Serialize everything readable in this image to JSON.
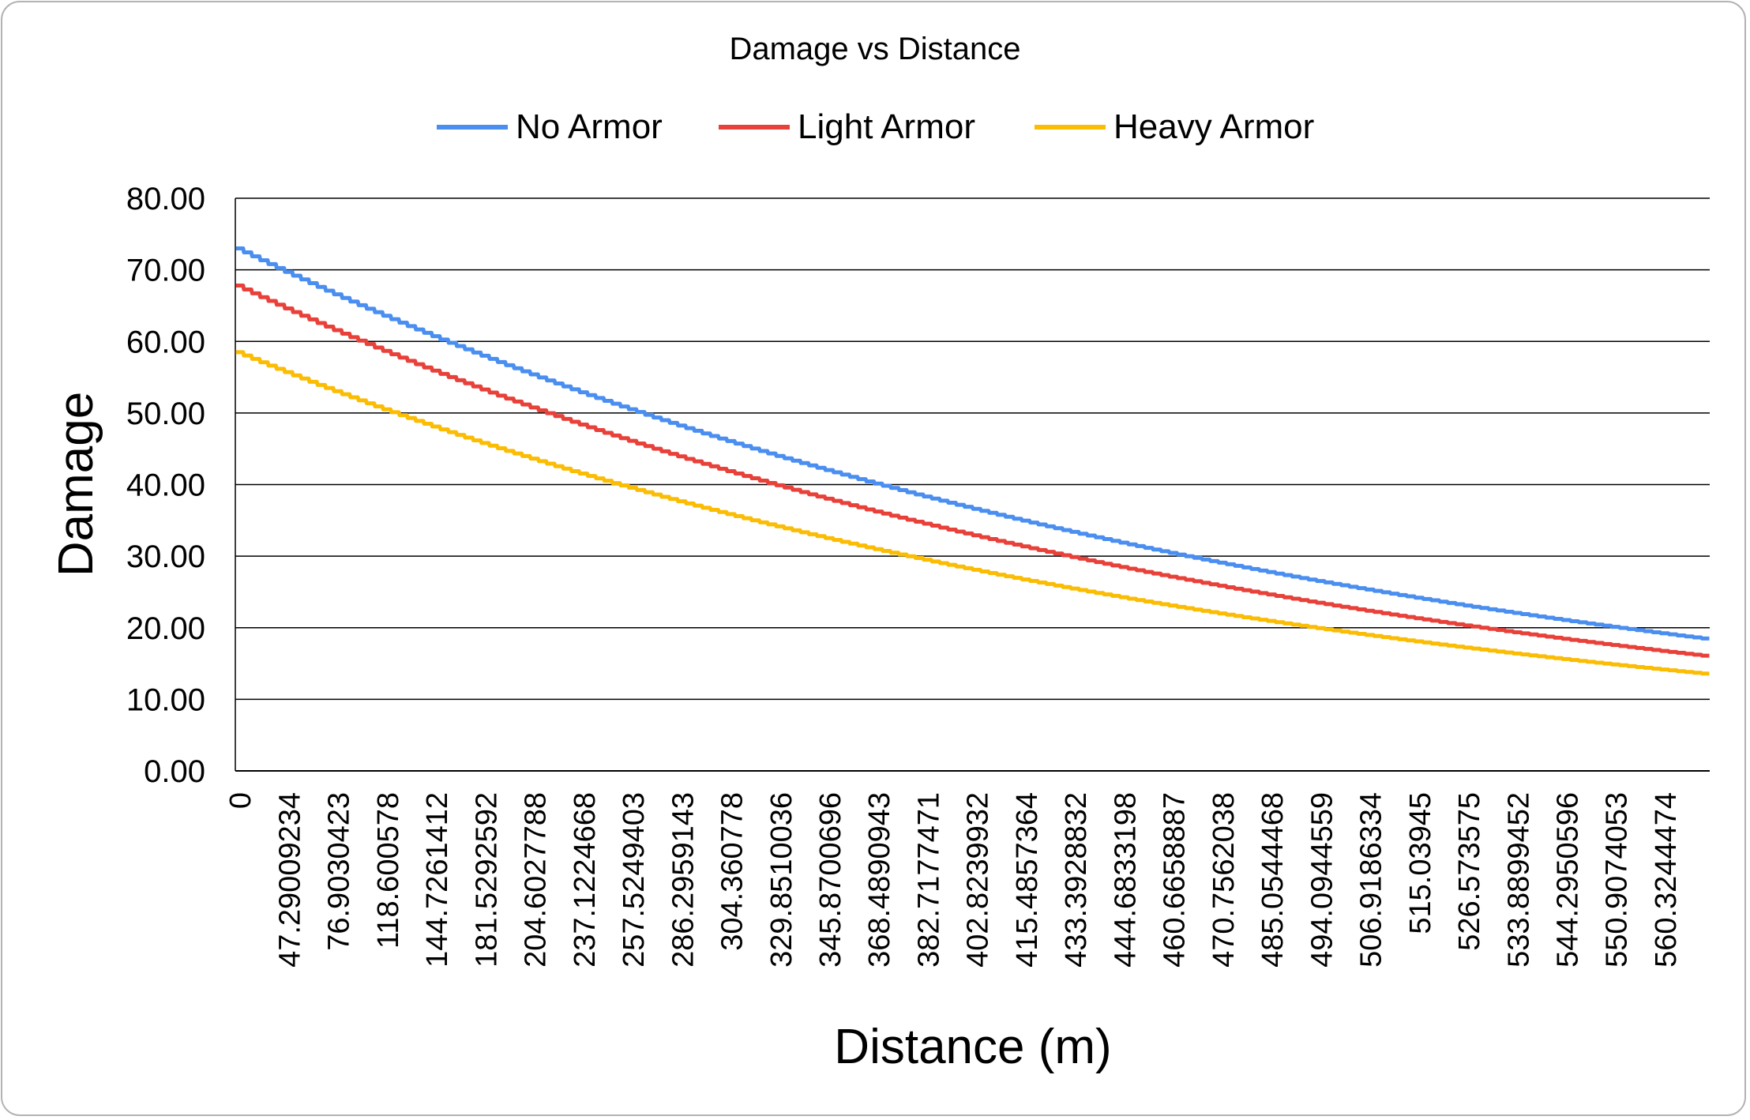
{
  "chart_data": {
    "type": "line",
    "title": "Damage vs Distance",
    "xlabel": "Distance (m)",
    "ylabel": "Damage",
    "ylim": [
      0,
      80
    ],
    "y_ticks": [
      "0.00",
      "10.00",
      "20.00",
      "30.00",
      "40.00",
      "50.00",
      "60.00",
      "70.00",
      "80.00"
    ],
    "x_ticks": [
      "0",
      "47.29009234",
      "76.9030423",
      "118.600578",
      "144.7261412",
      "181.5292592",
      "204.6027788",
      "237.1224668",
      "257.5249403",
      "286.2959143",
      "304.360778",
      "329.8510036",
      "345.8700696",
      "368.4890943",
      "382.7177471",
      "402.8239932",
      "415.4857364",
      "433.3928832",
      "444.6833198",
      "460.6658887",
      "470.7562038",
      "485.0544468",
      "494.0944559",
      "506.9186334",
      "515.03945",
      "526.573575",
      "533.8899452",
      "544.2950596",
      "550.9074053",
      "560.3244474"
    ],
    "x_points": 180,
    "legend_position": "top",
    "grid": true,
    "series": [
      {
        "name": "No Armor",
        "color": "#4a8ef0",
        "start": 73.0,
        "end": 18.5
      },
      {
        "name": "Light Armor",
        "color": "#e8413a",
        "start": 67.8,
        "end": 16.1
      },
      {
        "name": "Heavy Armor",
        "color": "#fbbc04",
        "start": 58.5,
        "end": 13.6
      }
    ]
  }
}
